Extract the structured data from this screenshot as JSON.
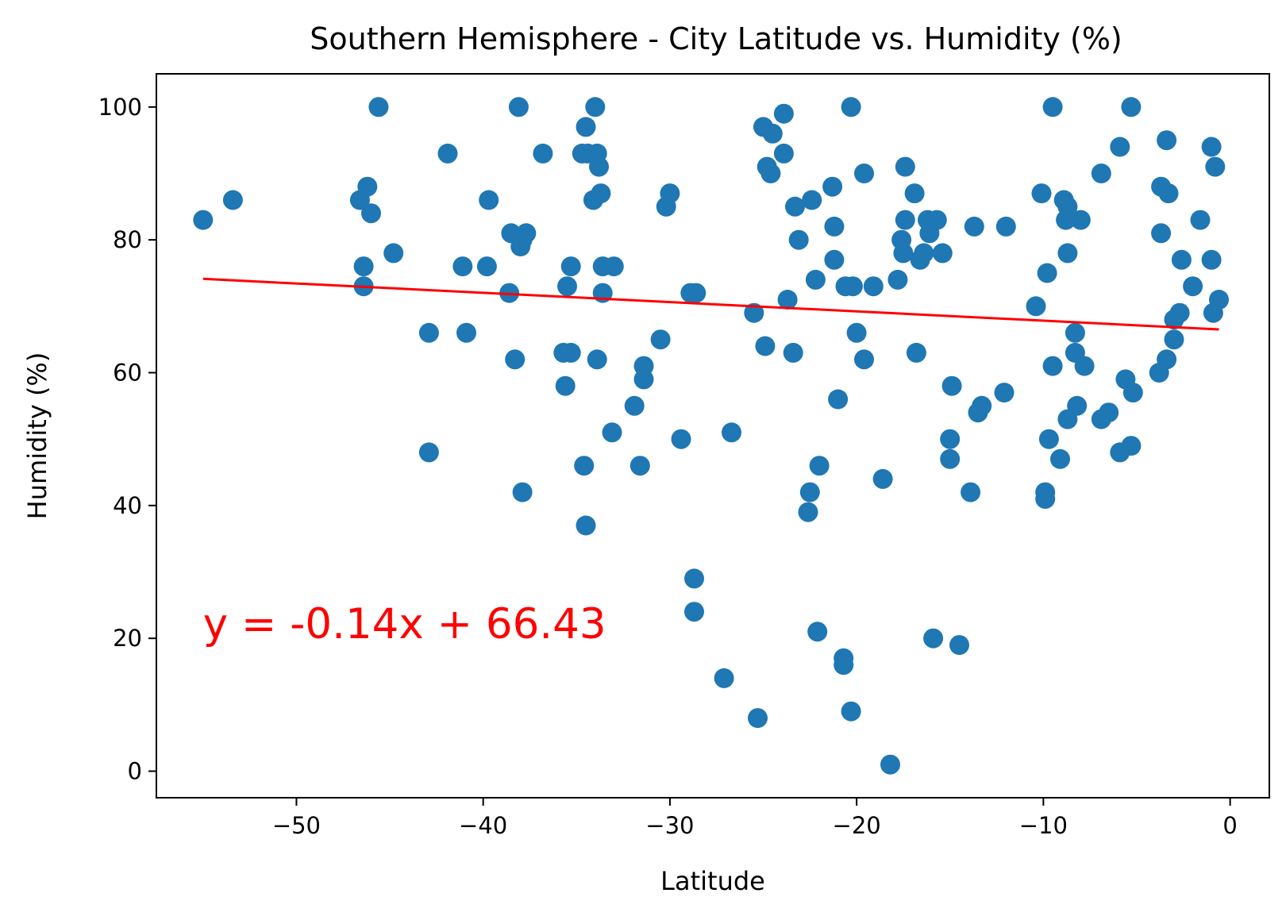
{
  "chart_data": {
    "type": "scatter",
    "title": "Southern Hemisphere - City Latitude vs. Humidity (%)",
    "xlabel": "Latitude",
    "ylabel": "Humidity (%)",
    "xlim": [
      -57.5,
      2.1
    ],
    "ylim": [
      -4,
      105
    ],
    "xticks": [
      -50,
      -40,
      -30,
      -20,
      -10,
      0
    ],
    "xtick_labels": [
      "−50",
      "−40",
      "−30",
      "−20",
      "−10",
      "0"
    ],
    "yticks": [
      0,
      20,
      40,
      60,
      80,
      100
    ],
    "ytick_labels": [
      "0",
      "20",
      "40",
      "60",
      "80",
      "100"
    ],
    "grid": false,
    "marker_color": "#1f77b4",
    "line_color": "#ff0000",
    "regression": {
      "slope": -0.14,
      "intercept": 66.43,
      "x_range": [
        -55.0,
        -0.6
      ],
      "equation_label": "y = -0.14x + 66.43",
      "label_anchor": [
        -55.0,
        20.0
      ]
    },
    "points": [
      [
        -55.0,
        83
      ],
      [
        -53.4,
        86
      ],
      [
        -46.6,
        86
      ],
      [
        -46.4,
        76
      ],
      [
        -46.4,
        73
      ],
      [
        -46.2,
        88
      ],
      [
        -46.0,
        84
      ],
      [
        -45.6,
        100
      ],
      [
        -44.8,
        78
      ],
      [
        -42.9,
        48
      ],
      [
        -42.9,
        66
      ],
      [
        -41.9,
        93
      ],
      [
        -41.1,
        76
      ],
      [
        -40.9,
        66
      ],
      [
        -39.8,
        76
      ],
      [
        -39.7,
        86
      ],
      [
        -38.6,
        72
      ],
      [
        -38.5,
        81
      ],
      [
        -38.3,
        62
      ],
      [
        -38.1,
        100
      ],
      [
        -38.0,
        79
      ],
      [
        -37.9,
        42
      ],
      [
        -37.9,
        80
      ],
      [
        -37.7,
        81
      ],
      [
        -36.8,
        93
      ],
      [
        -35.7,
        63
      ],
      [
        -35.6,
        58
      ],
      [
        -35.5,
        73
      ],
      [
        -35.3,
        63
      ],
      [
        -35.3,
        76
      ],
      [
        -34.7,
        93
      ],
      [
        -34.6,
        46
      ],
      [
        -34.5,
        37
      ],
      [
        -34.5,
        97
      ],
      [
        -34.4,
        93
      ],
      [
        -34.1,
        86
      ],
      [
        -34.0,
        100
      ],
      [
        -33.9,
        93
      ],
      [
        -33.9,
        62
      ],
      [
        -33.8,
        91
      ],
      [
        -33.7,
        87
      ],
      [
        -33.6,
        76
      ],
      [
        -33.6,
        72
      ],
      [
        -33.1,
        51
      ],
      [
        -33.0,
        76
      ],
      [
        -31.9,
        55
      ],
      [
        -31.6,
        46
      ],
      [
        -31.4,
        61
      ],
      [
        -31.4,
        59
      ],
      [
        -30.5,
        65
      ],
      [
        -30.2,
        85
      ],
      [
        -30.0,
        87
      ],
      [
        -29.4,
        50
      ],
      [
        -28.9,
        72
      ],
      [
        -28.6,
        72
      ],
      [
        -28.7,
        29
      ],
      [
        -28.7,
        24
      ],
      [
        -27.1,
        14
      ],
      [
        -26.7,
        51
      ],
      [
        -25.5,
        69
      ],
      [
        -25.3,
        8
      ],
      [
        -25.0,
        97
      ],
      [
        -24.9,
        64
      ],
      [
        -24.8,
        91
      ],
      [
        -24.6,
        90
      ],
      [
        -24.5,
        96
      ],
      [
        -23.9,
        99
      ],
      [
        -23.9,
        93
      ],
      [
        -23.7,
        71
      ],
      [
        -23.4,
        63
      ],
      [
        -23.3,
        85
      ],
      [
        -23.1,
        80
      ],
      [
        -22.6,
        39
      ],
      [
        -22.5,
        42
      ],
      [
        -22.4,
        86
      ],
      [
        -22.2,
        74
      ],
      [
        -22.1,
        21
      ],
      [
        -22.0,
        46
      ],
      [
        -21.3,
        88
      ],
      [
        -21.2,
        82
      ],
      [
        -21.2,
        77
      ],
      [
        -21.0,
        56
      ],
      [
        -20.7,
        17
      ],
      [
        -20.7,
        16
      ],
      [
        -20.6,
        73
      ],
      [
        -20.3,
        100
      ],
      [
        -20.3,
        9
      ],
      [
        -20.2,
        73
      ],
      [
        -20.0,
        66
      ],
      [
        -19.6,
        62
      ],
      [
        -19.6,
        90
      ],
      [
        -19.1,
        73
      ],
      [
        -18.6,
        44
      ],
      [
        -18.2,
        1
      ],
      [
        -17.8,
        74
      ],
      [
        -17.6,
        80
      ],
      [
        -17.5,
        78
      ],
      [
        -17.4,
        83
      ],
      [
        -17.4,
        91
      ],
      [
        -16.9,
        87
      ],
      [
        -16.8,
        63
      ],
      [
        -16.6,
        77
      ],
      [
        -16.4,
        78
      ],
      [
        -16.2,
        83
      ],
      [
        -16.1,
        81
      ],
      [
        -15.9,
        20
      ],
      [
        -15.7,
        83
      ],
      [
        -15.4,
        78
      ],
      [
        -15.0,
        50
      ],
      [
        -15.0,
        47
      ],
      [
        -14.9,
        58
      ],
      [
        -14.5,
        19
      ],
      [
        -13.9,
        42
      ],
      [
        -13.7,
        82
      ],
      [
        -13.5,
        54
      ],
      [
        -13.3,
        55
      ],
      [
        -12.1,
        57
      ],
      [
        -12.0,
        82
      ],
      [
        -10.4,
        70
      ],
      [
        -10.1,
        87
      ],
      [
        -9.9,
        42
      ],
      [
        -9.9,
        41
      ],
      [
        -9.8,
        75
      ],
      [
        -9.7,
        50
      ],
      [
        -9.5,
        100
      ],
      [
        -9.5,
        61
      ],
      [
        -9.1,
        47
      ],
      [
        -8.9,
        86
      ],
      [
        -8.8,
        83
      ],
      [
        -8.7,
        85
      ],
      [
        -8.7,
        78
      ],
      [
        -8.7,
        53
      ],
      [
        -8.3,
        66
      ],
      [
        -8.3,
        63
      ],
      [
        -8.2,
        55
      ],
      [
        -8.0,
        83
      ],
      [
        -7.8,
        61
      ],
      [
        -6.9,
        90
      ],
      [
        -6.9,
        53
      ],
      [
        -6.5,
        54
      ],
      [
        -5.9,
        94
      ],
      [
        -5.9,
        48
      ],
      [
        -5.6,
        59
      ],
      [
        -5.3,
        100
      ],
      [
        -5.3,
        49
      ],
      [
        -5.2,
        57
      ],
      [
        -3.8,
        60
      ],
      [
        -3.7,
        88
      ],
      [
        -3.7,
        81
      ],
      [
        -3.4,
        62
      ],
      [
        -3.4,
        95
      ],
      [
        -3.3,
        87
      ],
      [
        -3.0,
        68
      ],
      [
        -3.0,
        65
      ],
      [
        -2.7,
        69
      ],
      [
        -2.6,
        77
      ],
      [
        -2.0,
        73
      ],
      [
        -1.6,
        83
      ],
      [
        -1.0,
        94
      ],
      [
        -1.0,
        77
      ],
      [
        -0.9,
        69
      ],
      [
        -0.8,
        91
      ],
      [
        -0.6,
        71
      ]
    ]
  }
}
